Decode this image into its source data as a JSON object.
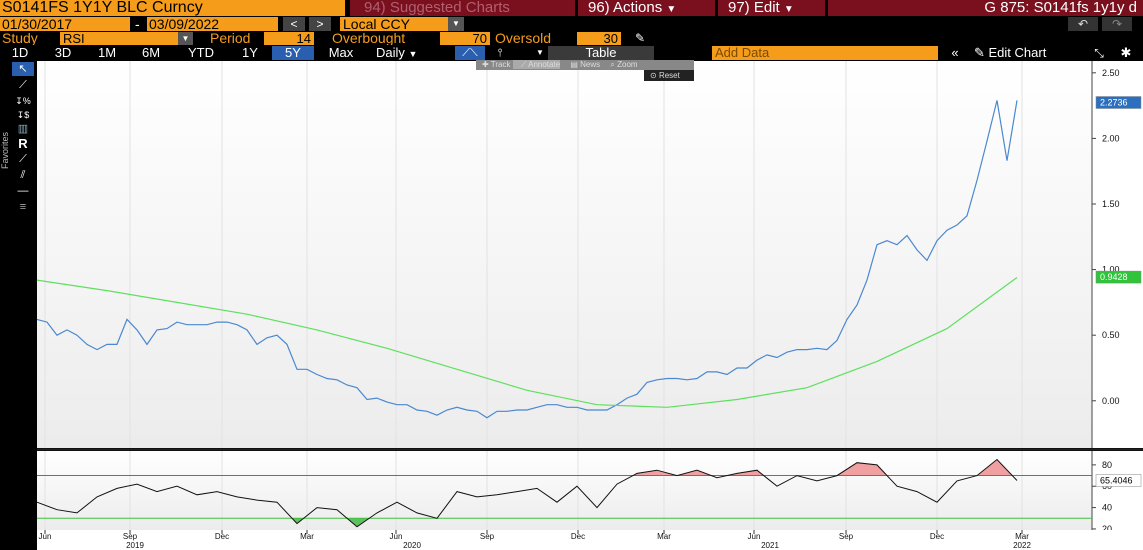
{
  "header": {
    "security": "S0141FS 1Y1Y BLC Curncy",
    "suggested": "94) Suggested Charts",
    "actions": "96) Actions",
    "edit": "97) Edit",
    "page_title": "G 875: S0141fs 1y1y d"
  },
  "dates": {
    "start": "01/30/2017",
    "separator": "-",
    "end": "03/09/2022",
    "currency": "Local CCY"
  },
  "study": {
    "label": "Study",
    "name": "RSI",
    "period_label": "Period",
    "period": 14,
    "overbought_label": "Overbought",
    "overbought": 70,
    "oversold_label": "Oversold",
    "oversold": 30
  },
  "toolbar": {
    "ranges": [
      "1D",
      "3D",
      "1M",
      "6M",
      "YTD",
      "1Y",
      "5Y",
      "Max"
    ],
    "selected_range": "5Y",
    "frequency": "Daily",
    "table": "Table",
    "add_data": "Add Data",
    "edit_chart": "Edit Chart"
  },
  "sidebar": {
    "favorites": "Favorites"
  },
  "overlay": {
    "track": "Track",
    "annotate": "Annotate",
    "news": "News",
    "zoom": "Zoom",
    "reset": "Reset"
  },
  "chart_data": [
    {
      "type": "line",
      "xlim": [
        0,
        105.5
      ],
      "xticks": [
        {
          "value": 0.8,
          "label": "Jun"
        },
        {
          "value": 9.3,
          "label": "Sep"
        },
        {
          "value": 18.5,
          "label": "Dec"
        },
        {
          "value": 27,
          "label": "Mar"
        },
        {
          "value": 35.9,
          "label": "Jun"
        },
        {
          "value": 45,
          "label": "Sep"
        },
        {
          "value": 54.1,
          "label": "Dec"
        },
        {
          "value": 62.7,
          "label": "Mar"
        },
        {
          "value": 71.7,
          "label": "Jun"
        },
        {
          "value": 80.9,
          "label": "Sep"
        },
        {
          "value": 90,
          "label": "Dec"
        },
        {
          "value": 98.5,
          "label": "Mar"
        }
      ],
      "year_ticks": [
        {
          "value": 9.8,
          "label": "2019"
        },
        {
          "value": 37.5,
          "label": "2020"
        },
        {
          "value": 73.3,
          "label": "2021"
        },
        {
          "value": 98.5,
          "label": "2022"
        }
      ],
      "ylim": [
        -0.36,
        2.59
      ],
      "yticks": [
        {
          "value": 0,
          "label": "0.00"
        },
        {
          "value": 0.5,
          "label": "0.50"
        },
        {
          "value": 1,
          "label": "1.00"
        },
        {
          "value": 1.5,
          "label": "1.50"
        },
        {
          "value": 2,
          "label": "2.00"
        },
        {
          "value": 2.5,
          "label": "2.50"
        }
      ],
      "series": [
        {
          "color": "#4a88d0",
          "last_value": 2.2736,
          "badge_color": "#2a6fc0",
          "values": [
            0.62,
            0.6,
            0.5,
            0.54,
            0.5,
            0.43,
            0.39,
            0.43,
            0.43,
            0.62,
            0.54,
            0.43,
            0.54,
            0.55,
            0.6,
            0.58,
            0.58,
            0.58,
            0.6,
            0.6,
            0.58,
            0.54,
            0.43,
            0.48,
            0.5,
            0.43,
            0.24,
            0.24,
            0.2,
            0.17,
            0.16,
            0.12,
            0.1,
            0.01,
            0.02,
            -0.01,
            -0.03,
            -0.03,
            -0.07,
            -0.08,
            -0.11,
            -0.07,
            -0.05,
            -0.07,
            -0.08,
            -0.13,
            -0.08,
            -0.08,
            -0.07,
            -0.07,
            -0.05,
            -0.03,
            -0.03,
            -0.05,
            -0.05,
            -0.07,
            -0.07,
            -0.07,
            -0.03,
            0.02,
            0.05,
            0.14,
            0.16,
            0.17,
            0.17,
            0.16,
            0.17,
            0.22,
            0.22,
            0.2,
            0.25,
            0.25,
            0.31,
            0.35,
            0.33,
            0.37,
            0.39,
            0.39,
            0.4,
            0.39,
            0.46,
            0.62,
            0.73,
            0.92,
            1.19,
            1.22,
            1.19,
            1.26,
            1.15,
            1.07,
            1.22,
            1.3,
            1.34,
            1.41,
            1.68,
            1.98,
            2.29,
            1.83,
            2.29
          ]
        },
        {
          "color": "#5ee05e",
          "last_value": 0.9428,
          "badge_color": "#2fc43a",
          "values": [
            0.92,
            0.84,
            0.75,
            0.66,
            0.54,
            0.4,
            0.24,
            0.08,
            -0.03,
            -0.05,
            0.01,
            0.1,
            0.3,
            0.55,
            0.94
          ]
        }
      ]
    },
    {
      "type": "rsi",
      "ylim": [
        19,
        93
      ],
      "yticks": [
        20,
        40,
        60,
        80
      ],
      "series": [
        {
          "color": "#111111",
          "last_value": 65.4046,
          "badge_color": "#ffffff",
          "values": [
            45,
            38,
            35,
            50,
            58,
            62,
            55,
            60,
            52,
            55,
            50,
            47,
            45,
            25,
            40,
            38,
            22,
            35,
            45,
            35,
            30,
            55,
            50,
            52,
            55,
            58,
            45,
            60,
            40,
            62,
            72,
            75,
            70,
            75,
            68,
            72,
            75,
            60,
            70,
            65,
            70,
            82,
            80,
            60,
            55,
            45,
            65,
            70,
            85,
            65.4
          ]
        }
      ]
    }
  ]
}
